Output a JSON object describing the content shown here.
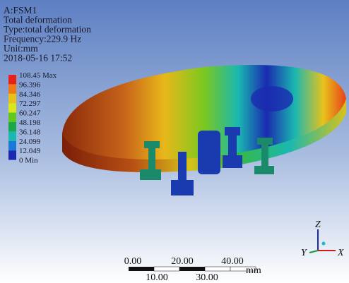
{
  "header": {
    "lines": [
      "A:FSM1",
      "Total deformation",
      "Type:total deformation",
      "Frequency:229.9 Hz",
      "Unit:mm",
      "2018-05-16 17:52"
    ]
  },
  "legend": {
    "labels": [
      "108.45 Max",
      "96.396",
      "84.346",
      "72.297",
      "60.247",
      "48.198",
      "36.148",
      "24.099",
      "12.049",
      "0 Min"
    ],
    "colors": [
      "#e8201a",
      "#f07a14",
      "#e8c21a",
      "#d8e81a",
      "#62c81e",
      "#1aa84a",
      "#1ab8b0",
      "#1a78d8",
      "#1a2ab0"
    ]
  },
  "scale_bar": {
    "top_labels": [
      "0.00",
      "20.00",
      "40.00"
    ],
    "bottom_labels": [
      "10.00",
      "30.00"
    ],
    "unit": "mm"
  },
  "triad": {
    "z": "Z",
    "y": "Y",
    "x": "X"
  }
}
